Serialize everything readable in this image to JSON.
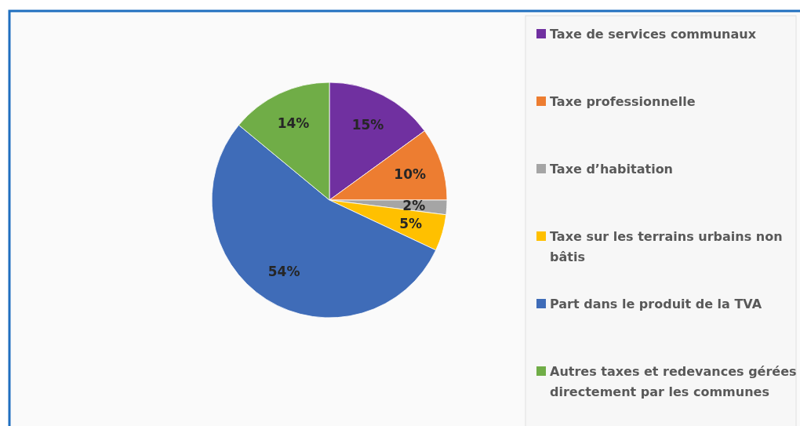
{
  "chart_data": {
    "type": "pie",
    "categories": [
      "Taxe de services communaux",
      "Taxe professionnelle",
      "Taxe d’habitation",
      "Taxe sur les terrains urbains non bâtis",
      "Part dans le produit de la TVA",
      "Autres taxes et redevances gérées directement par les communes"
    ],
    "values": [
      15,
      10,
      2,
      5,
      54,
      14
    ],
    "value_labels": [
      "15%",
      "10%",
      "2%",
      "5%",
      "54%",
      "14%"
    ],
    "colors": [
      "#7030a0",
      "#ed7d31",
      "#a5a5a5",
      "#ffc000",
      "#3f6cb8",
      "#70ad47"
    ],
    "legend": "right"
  }
}
